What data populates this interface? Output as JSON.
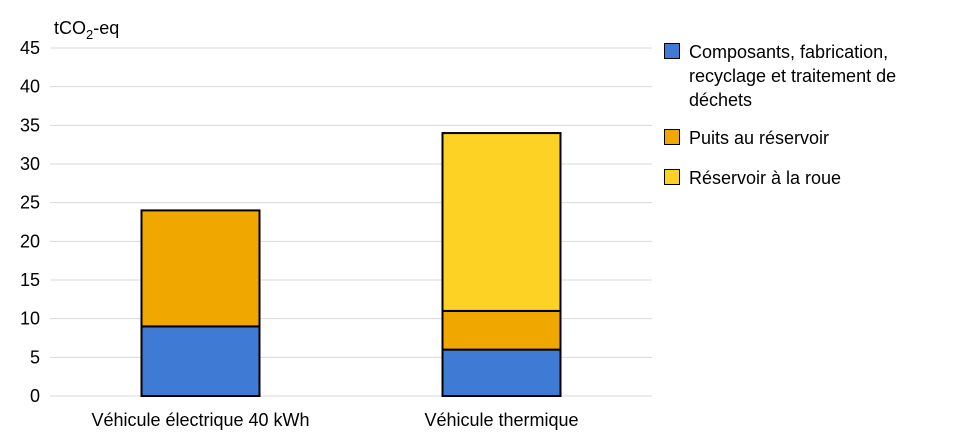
{
  "chart_data": {
    "type": "bar",
    "stacked": true,
    "title": "",
    "ylabel_prefix": "tCO",
    "ylabel_subscript": "2",
    "ylabel_suffix": "-eq",
    "xlabel": "",
    "ylim": [
      0,
      45
    ],
    "ytick_step": 5,
    "grid": true,
    "legend_position": "right",
    "categories": [
      "Véhicule électrique 40 kWh",
      "Véhicule thermique"
    ],
    "series": [
      {
        "name": "Composants, fabrication, recyclage et traitement de déchets",
        "color": "#3f7ad4",
        "values": [
          9,
          6
        ]
      },
      {
        "name": "Puits au réservoir",
        "color": "#f0a800",
        "values": [
          15,
          5
        ]
      },
      {
        "name": "Réservoir à la roue",
        "color": "#fdd224",
        "values": [
          0,
          23
        ]
      }
    ],
    "y_ticks": [
      "0",
      "5",
      "10",
      "15",
      "20",
      "25",
      "30",
      "35",
      "40",
      "45"
    ]
  }
}
